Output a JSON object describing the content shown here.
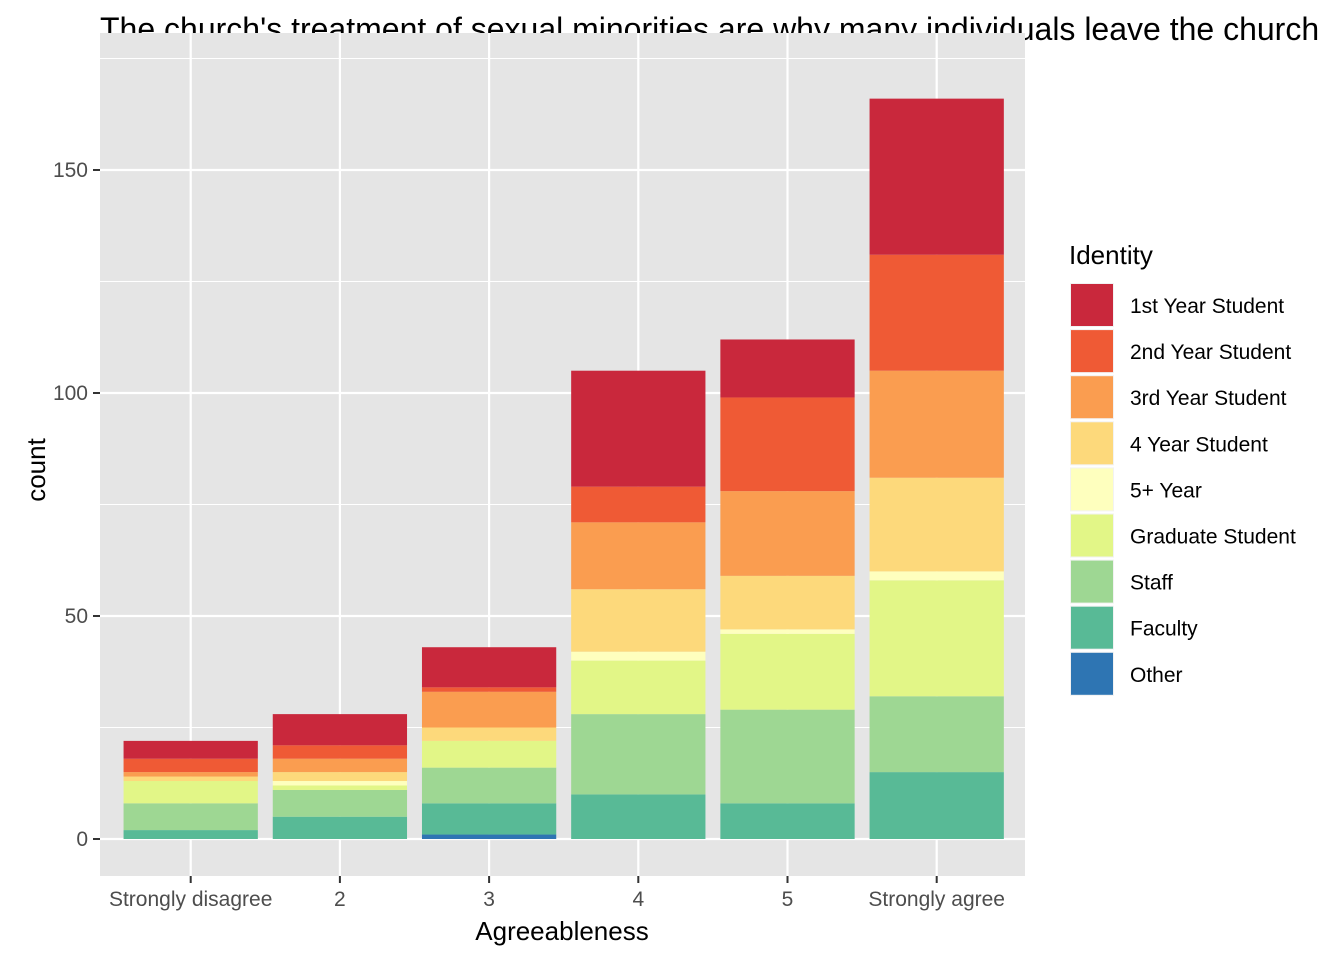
{
  "chart_data": {
    "type": "bar",
    "stacked": true,
    "title": "The church's treatment of sexual minorities are why many individuals leave the church",
    "xlabel": "Agreeableness",
    "ylabel": "count",
    "categories": [
      "Strongly disagree",
      "2",
      "3",
      "4",
      "5",
      "Strongly agree"
    ],
    "ylim": [
      -8,
      170
    ],
    "yticks": [
      0,
      50,
      100,
      150
    ],
    "grid": true,
    "panel_background": "#e5e5e5",
    "legend": {
      "title": "Identity",
      "placement": "right"
    },
    "series": [
      {
        "name": "1st Year Student",
        "color": "#c9283c",
        "values": [
          4,
          7,
          9,
          26,
          13,
          35
        ]
      },
      {
        "name": "2nd Year Student",
        "color": "#ef5a35",
        "values": [
          3,
          3,
          1,
          8,
          21,
          26
        ]
      },
      {
        "name": "3rd Year Student",
        "color": "#fa9d50",
        "values": [
          1,
          3,
          8,
          15,
          19,
          24
        ]
      },
      {
        "name": "4 Year Student",
        "color": "#fdd97b",
        "values": [
          1,
          2,
          3,
          14,
          12,
          21
        ]
      },
      {
        "name": "5+ Year",
        "color": "#feffbe",
        "values": [
          0,
          1,
          0,
          2,
          1,
          2
        ]
      },
      {
        "name": "Graduate Student",
        "color": "#e2f687",
        "values": [
          5,
          1,
          6,
          12,
          17,
          26
        ]
      },
      {
        "name": "Staff",
        "color": "#9ed793",
        "values": [
          6,
          6,
          8,
          18,
          21,
          17
        ]
      },
      {
        "name": "Faculty",
        "color": "#58ba96",
        "values": [
          2,
          5,
          7,
          10,
          8,
          15
        ]
      },
      {
        "name": "Other",
        "color": "#2e75b3",
        "values": [
          0,
          0,
          1,
          0,
          0,
          0
        ]
      }
    ]
  }
}
